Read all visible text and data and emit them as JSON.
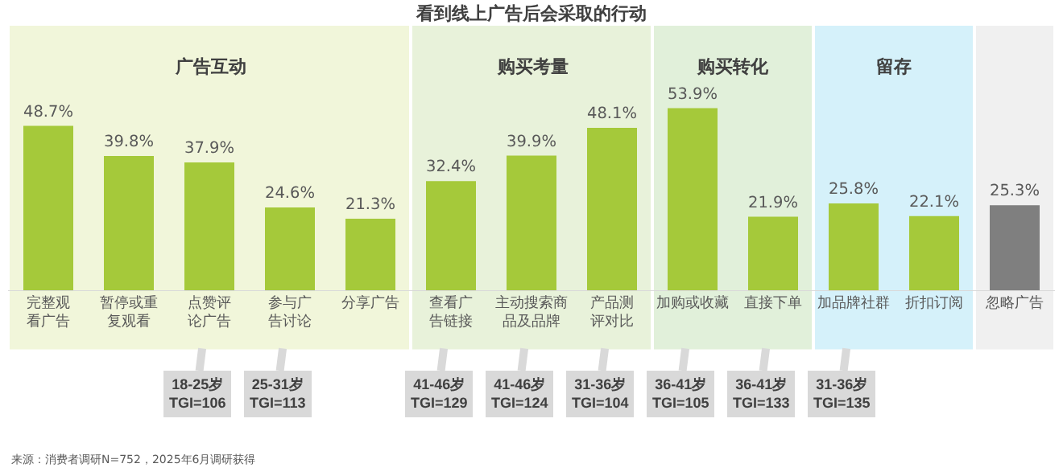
{
  "chart_data": {
    "type": "bar",
    "title": "看到线上广告后会采取的行动",
    "categories": [
      "完整观看广告",
      "暂停或重复观看",
      "点赞评论广告",
      "参与广告讨论",
      "分享广告",
      "查看广告链接",
      "主动搜索商品及品牌",
      "产品测评对比",
      "加购或收藏",
      "直接下单",
      "加品牌社群",
      "折扣订阅",
      "忽略广告"
    ],
    "values": [
      48.7,
      39.8,
      37.9,
      24.6,
      21.3,
      32.4,
      39.9,
      48.1,
      53.9,
      21.9,
      25.8,
      22.1,
      25.3
    ],
    "colors": [
      "#a5c93a",
      "#a5c93a",
      "#a5c93a",
      "#a5c93a",
      "#a5c93a",
      "#a5c93a",
      "#a5c93a",
      "#a5c93a",
      "#a5c93a",
      "#a5c93a",
      "#a5c93a",
      "#a5c93a",
      "#7f7f7f"
    ],
    "value_labels": [
      "48.7%",
      "39.8%",
      "37.9%",
      "24.6%",
      "21.3%",
      "32.4%",
      "39.9%",
      "48.1%",
      "53.9%",
      "21.9%",
      "25.8%",
      "22.1%",
      "25.3%"
    ],
    "bands": [
      {
        "axis": "x",
        "from": "完整观看广告",
        "to": "分享广告",
        "label": "广告互动",
        "color": "#f1f6da"
      },
      {
        "axis": "x",
        "from": "查看广告链接",
        "to": "产品测评对比",
        "label": "购买考量",
        "color": "#e8f2da"
      },
      {
        "axis": "x",
        "from": "加购或收藏",
        "to": "直接下单",
        "label": "购买转化",
        "color": "#e1f0da"
      },
      {
        "axis": "x",
        "from": "加品牌社群",
        "to": "折扣订阅",
        "label": "留存",
        "color": "#d5f1fa"
      },
      {
        "axis": "x",
        "from": "忽略广告",
        "to": "忽略广告",
        "color": "#f0f0f0"
      }
    ],
    "annotations": [
      {
        "text": "18-25岁\nTGI=106",
        "x": "点赞评论广告",
        "y": 0
      },
      {
        "text": "25-31岁\nTGI=113",
        "x": "参与广告讨论",
        "y": 0
      },
      {
        "text": "41-46岁\nTGI=129",
        "x": "查看广告链接",
        "y": 0
      },
      {
        "text": "41-46岁\nTGI=124",
        "x": "主动搜索商品及品牌",
        "y": 0
      },
      {
        "text": "31-36岁\nTGI=104",
        "x": "产品测评对比",
        "y": 0
      },
      {
        "text": "36-41岁\nTGI=105",
        "x": "加购或收藏",
        "y": 0
      },
      {
        "text": "36-41岁\nTGI=133",
        "x": "直接下单",
        "y": 0
      },
      {
        "text": "31-36岁\nTGI=135",
        "x": "加品牌社群",
        "y": 0
      },
      "来源：消费者调研N=752，2025年6月调研获得"
    ],
    "grid": false,
    "legend": false
  }
}
